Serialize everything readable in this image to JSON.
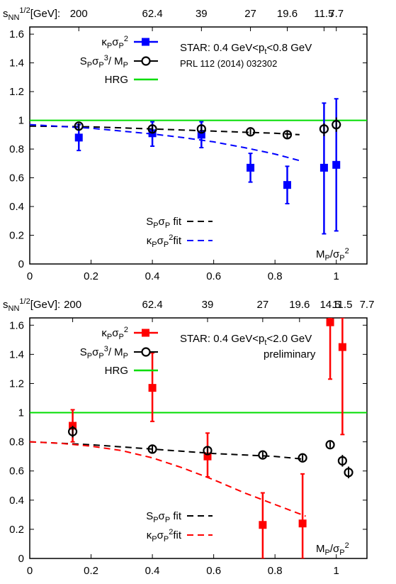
{
  "chart_data": [
    {
      "type": "scatter",
      "xlabel_parts": [
        "M",
        "P",
        "/σ",
        "P",
        "2"
      ],
      "top_axis_label": [
        "s",
        "NN",
        "1/2",
        "[GeV]:"
      ],
      "top_axis": {
        "labels": [
          "200",
          "62.4",
          "39",
          "27",
          "19.6",
          "11.5",
          "7.7"
        ],
        "at": [
          0.16,
          0.4,
          0.56,
          0.72,
          0.84,
          0.96,
          1.0
        ]
      },
      "xlim": [
        0,
        1.1
      ],
      "ylim": [
        0,
        1.65
      ],
      "xticks": [
        "0",
        "0.2",
        "0.4",
        "0.6",
        "0.8",
        "1"
      ],
      "yticks": [
        "0",
        "0.2",
        "0.4",
        "0.6",
        "0.8",
        "1",
        "1.2",
        "1.4",
        "1.6"
      ],
      "note": [
        "STAR: 0.4 GeV<p",
        "t",
        "<0.8 GeV"
      ],
      "citation": "PRL 112 (2014) 032302",
      "legend": [
        {
          "name_parts": [
            "κ",
            "P",
            "σ",
            "P",
            "2"
          ]
        },
        {
          "name_parts": [
            "S",
            "P",
            "σ",
            "P",
            "3",
            "/ M",
            "P"
          ]
        },
        {
          "name": "HRG"
        }
      ],
      "fit_legend": [
        {
          "name_parts": [
            "S",
            "P",
            "σ",
            "P",
            " fit"
          ]
        },
        {
          "name_parts": [
            "κ",
            "P",
            "σ",
            "P",
            "2",
            "fit"
          ]
        }
      ],
      "hrg_value": 1,
      "kappa_points": [
        {
          "x": 0.16,
          "y": 0.88,
          "lo": 0.79,
          "hi": 0.97
        },
        {
          "x": 0.4,
          "y": 0.91,
          "lo": 0.82,
          "hi": 0.99
        },
        {
          "x": 0.56,
          "y": 0.9,
          "lo": 0.81,
          "hi": 0.99
        },
        {
          "x": 0.72,
          "y": 0.67,
          "lo": 0.57,
          "hi": 0.77
        },
        {
          "x": 0.84,
          "y": 0.55,
          "lo": 0.42,
          "hi": 0.68
        },
        {
          "x": 0.96,
          "y": 0.67,
          "lo": 0.21,
          "hi": 1.12
        },
        {
          "x": 1.0,
          "y": 0.69,
          "lo": 0.23,
          "hi": 1.15
        }
      ],
      "skew_points": [
        {
          "x": 0.16,
          "y": 0.96,
          "lo": 0.94,
          "hi": 0.98
        },
        {
          "x": 0.4,
          "y": 0.94,
          "lo": 0.92,
          "hi": 0.97
        },
        {
          "x": 0.56,
          "y": 0.94,
          "lo": 0.92,
          "hi": 0.97
        },
        {
          "x": 0.72,
          "y": 0.92,
          "lo": 0.9,
          "hi": 0.94
        },
        {
          "x": 0.84,
          "y": 0.9,
          "lo": 0.87,
          "hi": 0.93
        },
        {
          "x": 0.96,
          "y": 0.94,
          "lo": 0.89,
          "hi": 0.98
        },
        {
          "x": 1.0,
          "y": 0.97,
          "lo": 0.92,
          "hi": 1.02
        }
      ],
      "skew_fit": {
        "x": [
          0,
          0.2,
          0.4,
          0.6,
          0.8,
          0.88
        ],
        "y": [
          0.96,
          0.955,
          0.94,
          0.925,
          0.91,
          0.9
        ]
      },
      "kappa_fit": {
        "x": [
          0,
          0.2,
          0.4,
          0.5,
          0.6,
          0.7,
          0.8,
          0.88
        ],
        "y": [
          0.97,
          0.945,
          0.905,
          0.88,
          0.85,
          0.81,
          0.765,
          0.72
        ]
      }
    },
    {
      "type": "scatter",
      "xlabel_parts": [
        "M",
        "P",
        "/σ",
        "P",
        "2"
      ],
      "top_axis_label": [
        "s",
        "NN",
        "1/2",
        "[GeV]:"
      ],
      "top_axis": {
        "labels": [
          "200",
          "62.4",
          "39",
          "27",
          "19.6",
          "14.5",
          "11.5",
          "7.7"
        ],
        "at": [
          0.14,
          0.4,
          0.58,
          0.76,
          0.88,
          0.98,
          1.02,
          1.1
        ]
      },
      "xlim": [
        0,
        1.1
      ],
      "ylim": [
        0,
        1.65
      ],
      "xticks": [
        "0",
        "0.2",
        "0.4",
        "0.6",
        "0.8",
        "1"
      ],
      "yticks": [
        "0",
        "0.2",
        "0.4",
        "0.6",
        "0.8",
        "1",
        "1.2",
        "1.4",
        "1.6"
      ],
      "note": [
        "STAR: 0.4 GeV<p",
        "t",
        "<2.0 GeV"
      ],
      "note2": "preliminary",
      "legend": [
        {
          "name_parts": [
            "κ",
            "P",
            "σ",
            "P",
            "2"
          ]
        },
        {
          "name_parts": [
            "S",
            "P",
            "σ",
            "P",
            "3",
            "/ M",
            "P"
          ]
        },
        {
          "name": "HRG"
        }
      ],
      "fit_legend": [
        {
          "name_parts": [
            "S",
            "P",
            "σ",
            "P",
            " fit"
          ]
        },
        {
          "name_parts": [
            "κ",
            "P",
            "σ",
            "P",
            "2",
            "fit"
          ]
        }
      ],
      "hrg_value": 1,
      "kappa_points": [
        {
          "x": 0.14,
          "y": 0.91,
          "lo": 0.8,
          "hi": 1.02
        },
        {
          "x": 0.4,
          "y": 1.17,
          "lo": 0.94,
          "hi": 1.41
        },
        {
          "x": 0.58,
          "y": 0.7,
          "lo": 0.56,
          "hi": 0.86
        },
        {
          "x": 0.76,
          "y": 0.23,
          "lo": 0.0,
          "hi": 0.45
        },
        {
          "x": 0.89,
          "y": 0.24,
          "lo": 0.0,
          "hi": 0.58
        },
        {
          "x": 0.98,
          "y": 1.62,
          "lo": 1.23,
          "hi": 1.65
        },
        {
          "x": 1.02,
          "y": 1.45,
          "lo": 0.85,
          "hi": 1.65
        }
      ],
      "skew_points": [
        {
          "x": 0.14,
          "y": 0.87,
          "lo": 0.83,
          "hi": 0.91
        },
        {
          "x": 0.4,
          "y": 0.75,
          "lo": 0.72,
          "hi": 0.78
        },
        {
          "x": 0.58,
          "y": 0.74,
          "lo": 0.71,
          "hi": 0.77
        },
        {
          "x": 0.76,
          "y": 0.71,
          "lo": 0.69,
          "hi": 0.73
        },
        {
          "x": 0.89,
          "y": 0.69,
          "lo": 0.67,
          "hi": 0.71
        },
        {
          "x": 0.98,
          "y": 0.78,
          "lo": 0.76,
          "hi": 0.8
        },
        {
          "x": 1.02,
          "y": 0.67,
          "lo": 0.63,
          "hi": 0.71
        },
        {
          "x": 1.04,
          "y": 0.59,
          "lo": 0.55,
          "hi": 0.63
        }
      ],
      "skew_fit": {
        "x": [
          0,
          0.2,
          0.4,
          0.6,
          0.8,
          0.9
        ],
        "y": [
          0.8,
          0.78,
          0.75,
          0.72,
          0.7,
          0.68
        ]
      },
      "kappa_fit": {
        "x": [
          0,
          0.1,
          0.2,
          0.3,
          0.4,
          0.5,
          0.6,
          0.7,
          0.8,
          0.9
        ],
        "y": [
          0.8,
          0.79,
          0.77,
          0.74,
          0.69,
          0.62,
          0.54,
          0.45,
          0.37,
          0.29
        ]
      }
    }
  ],
  "colors": {
    "panel1_kappa": "#0000ff",
    "panel2_kappa": "#ff0000",
    "skewness": "#000000",
    "hrg": "#00dd00",
    "fit_black": "#000000"
  }
}
